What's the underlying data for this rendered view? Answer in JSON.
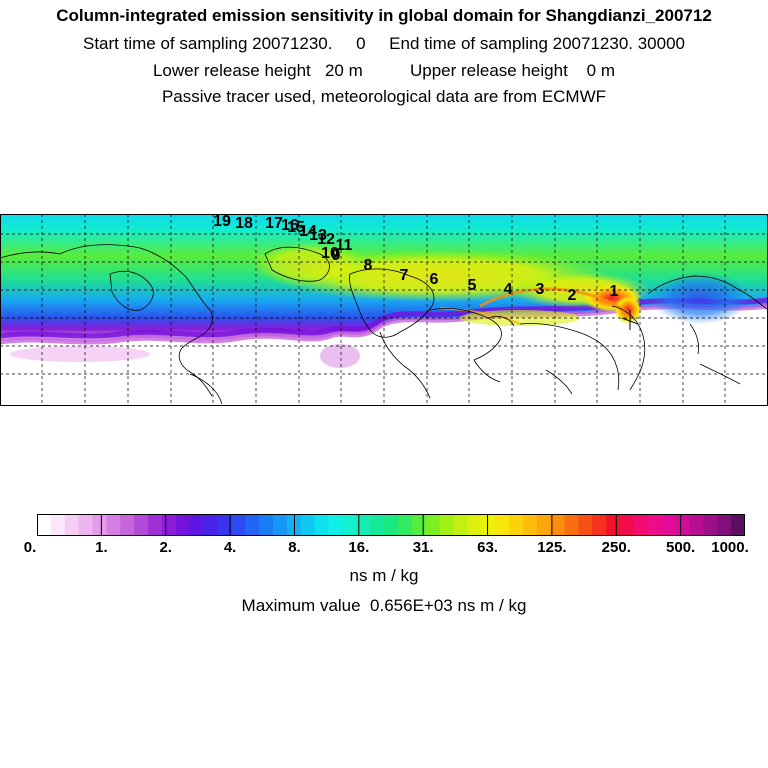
{
  "header": {
    "title": "Column-integrated emission sensitivity in global domain for Shangdianzi_200712",
    "line2": "Start time of sampling 20071230.     0     End time of sampling 20071230. 30000",
    "line3": "Lower release height   20 m          Upper release height    0 m",
    "line4": "Passive tracer used, meteorological data are from ECMWF"
  },
  "map": {
    "trajectory_labels": [
      "1",
      "2",
      "3",
      "4",
      "5",
      "6",
      "7",
      "8",
      "9",
      "10",
      "11",
      "12",
      "13",
      "14",
      "15",
      "16",
      "17",
      "18",
      "19"
    ]
  },
  "colorbar": {
    "ticks": [
      "0.",
      "1.",
      "2.",
      "4.",
      "8.",
      "16.",
      "31.",
      "63.",
      "125.",
      "250.",
      "500.",
      "1000."
    ],
    "unit": "ns m / kg",
    "colors": [
      "#ffffff",
      "#fbe6fb",
      "#f5cdf5",
      "#eeb4f0",
      "#e49be9",
      "#d67fe2",
      "#c765dd",
      "#b44ad8",
      "#a02fd6",
      "#8c1cd8",
      "#7512dc",
      "#5e16e3",
      "#4a22ea",
      "#3935ee",
      "#2c4cf1",
      "#2264f3",
      "#1b7df4",
      "#1896f4",
      "#14b0f3",
      "#10c9f1",
      "#0ee2ee",
      "#10f0e4",
      "#12f0cc",
      "#14ecb2",
      "#16e89a",
      "#1ae880",
      "#30ea60",
      "#55ec40",
      "#7cef24",
      "#a2f014",
      "#c2f00f",
      "#dcf00c",
      "#eef00b",
      "#f8e60a",
      "#fcd20a",
      "#fdbd0a",
      "#fda60a",
      "#fb8c0c",
      "#f96f10",
      "#f75016",
      "#f5301e",
      "#f3122a",
      "#f20c4c",
      "#f20c6e",
      "#ee0c8a",
      "#e20c98",
      "#cf0d98",
      "#b80e92",
      "#9c0f88",
      "#7e107c",
      "#5a0f60"
    ],
    "max_label": "Maximum value  0.656E+03 ns m / kg"
  }
}
